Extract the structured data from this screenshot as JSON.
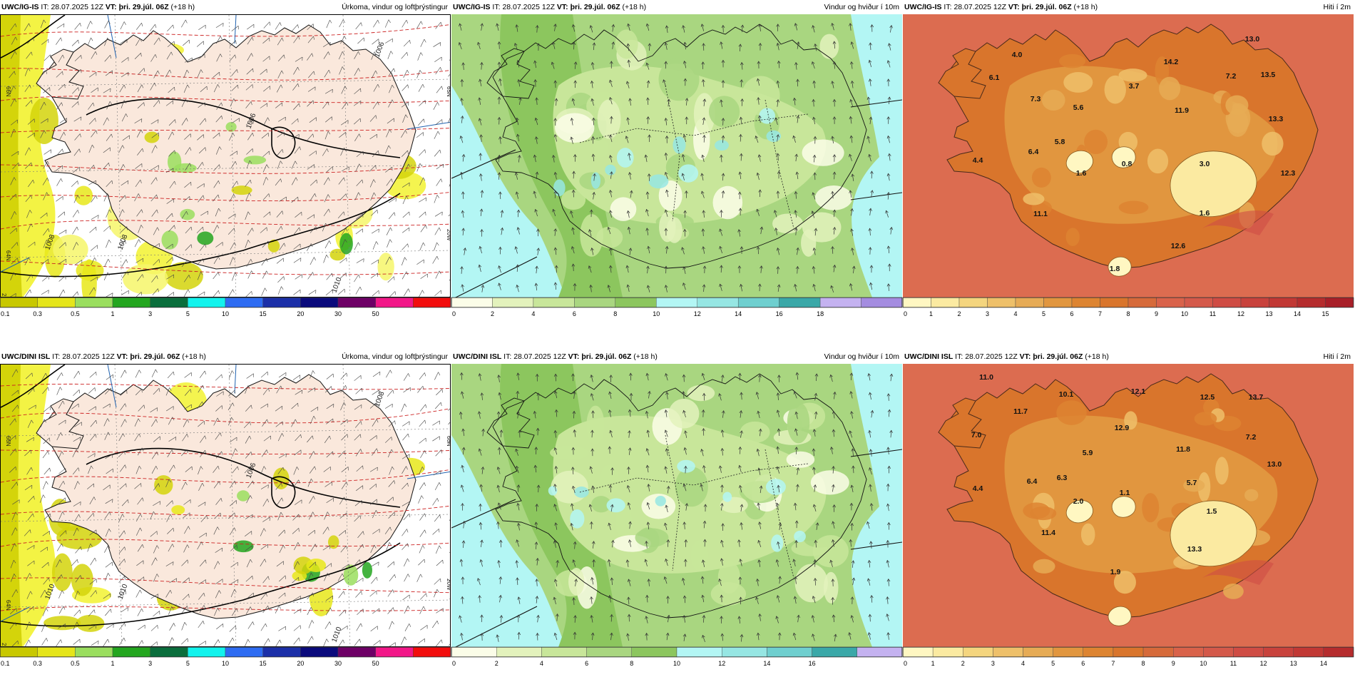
{
  "rows": [
    {
      "model": "UWC/IG-IS",
      "it_label": "IT:",
      "it_value": "28.07.2025 12Z",
      "vt_label": "VT:",
      "vt_value": "þri. 29.júl. 06Z",
      "lead": "(+18 h)",
      "precip": {
        "title": "Úrkoma, vindur og loftþrýstingur",
        "isobars": [
          "1006",
          "1006",
          "1008",
          "1008",
          "1010"
        ],
        "lat_labels": [
          "66N",
          "64N",
          "65N"
        ],
        "lon_labels": [
          "25W",
          "20W"
        ]
      },
      "wind": {
        "title": "Vindur og hviður í 10m"
      },
      "temp": {
        "title": "Hiti í 2m",
        "values": [
          "13.0",
          "4.0",
          "6.1",
          "14.2",
          "7.2",
          "13.5",
          "7.3",
          "3.7",
          "5.6",
          "11.9",
          "13.3",
          "5.8",
          "6.4",
          "4.4",
          "1.6",
          "0.8",
          "3.0",
          "12.3",
          "11.1",
          "1.6",
          "12.6",
          "1.8"
        ]
      }
    },
    {
      "model": "UWC/DINI ISL",
      "it_label": "IT:",
      "it_value": "28.07.2025 12Z",
      "vt_label": "VT:",
      "vt_value": "þri. 29.júl. 06Z",
      "lead": "(+18 h)",
      "precip": {
        "title": "Úrkoma, vindur og loftþrýstingur",
        "isobars": [
          "1008",
          "1006",
          "1010",
          "1010",
          "1010"
        ],
        "lat_labels": [
          "66N",
          "64N",
          "66N"
        ],
        "lon_labels": [
          "25W",
          "20W"
        ]
      },
      "wind": {
        "title": "Vindur og hviður í 10m"
      },
      "temp": {
        "title": "Hiti í 2m",
        "values": [
          "11.0",
          "10.1",
          "12.1",
          "12.5",
          "13.7",
          "11.7",
          "7.0",
          "12.9",
          "7.2",
          "11.8",
          "5.9",
          "6.4",
          "6.3",
          "13.0",
          "4.4",
          "2.0",
          "1.1",
          "5.7",
          "1.5",
          "11.4",
          "13.3",
          "1.9"
        ]
      }
    }
  ],
  "colorbars": {
    "precip": {
      "labels": [
        "0.1",
        "0.3",
        "0.5",
        "1",
        "3",
        "5",
        "10",
        "15",
        "20",
        "30",
        "50"
      ],
      "colors": [
        "#c8c800",
        "#e5e51a",
        "#9ade5e",
        "#23a61f",
        "#0a6e3c",
        "#12f3ed",
        "#2e6cf2",
        "#1b2fa8",
        "#0a0a7c",
        "#6e0066",
        "#f21788",
        "#f20d0d"
      ]
    },
    "wind": {
      "top": {
        "labels": [
          "0",
          "2",
          "4",
          "6",
          "8",
          "10",
          "12",
          "14",
          "16",
          "18"
        ],
        "colors": [
          "#fbfde8",
          "#e3f2bc",
          "#c8e69a",
          "#a9d680",
          "#8cc65e",
          "#b3f6f4",
          "#96e6e3",
          "#6fcfcf",
          "#3aa8a8",
          "#c4b2f0",
          "#a48ce0"
        ]
      },
      "bottom": {
        "labels": [
          "0",
          "2",
          "4",
          "6",
          "8",
          "10",
          "12",
          "14",
          "16"
        ],
        "colors": [
          "#fbfde8",
          "#e3f2bc",
          "#c8e69a",
          "#a9d680",
          "#8cc65e",
          "#b3f6f4",
          "#96e6e3",
          "#6fcfcf",
          "#3aa8a8",
          "#c4b2f0"
        ]
      }
    },
    "temp": {
      "top": {
        "labels": [
          "0",
          "1",
          "2",
          "3",
          "4",
          "5",
          "6",
          "7",
          "8",
          "9",
          "10",
          "11",
          "12",
          "13",
          "14",
          "15"
        ],
        "colors": [
          "#fff7c2",
          "#fbeaa1",
          "#f4d57e",
          "#eec06a",
          "#e6ab55",
          "#e1963f",
          "#dd8431",
          "#d9752c",
          "#d66a3a",
          "#d9624a",
          "#d4594a",
          "#cf4c44",
          "#c8423c",
          "#c13834",
          "#b52c2d",
          "#a81f28"
        ]
      },
      "bottom": {
        "labels": [
          "0",
          "1",
          "2",
          "3",
          "4",
          "5",
          "6",
          "7",
          "8",
          "9",
          "10",
          "11",
          "12",
          "13",
          "14"
        ],
        "colors": [
          "#fff7c2",
          "#fbeaa1",
          "#f4d57e",
          "#eec06a",
          "#e6ab55",
          "#e1963f",
          "#dd8431",
          "#d9752c",
          "#d66a3a",
          "#d9624a",
          "#d4594a",
          "#cf4c44",
          "#c8423c",
          "#c13834",
          "#b52c2d"
        ]
      }
    }
  }
}
